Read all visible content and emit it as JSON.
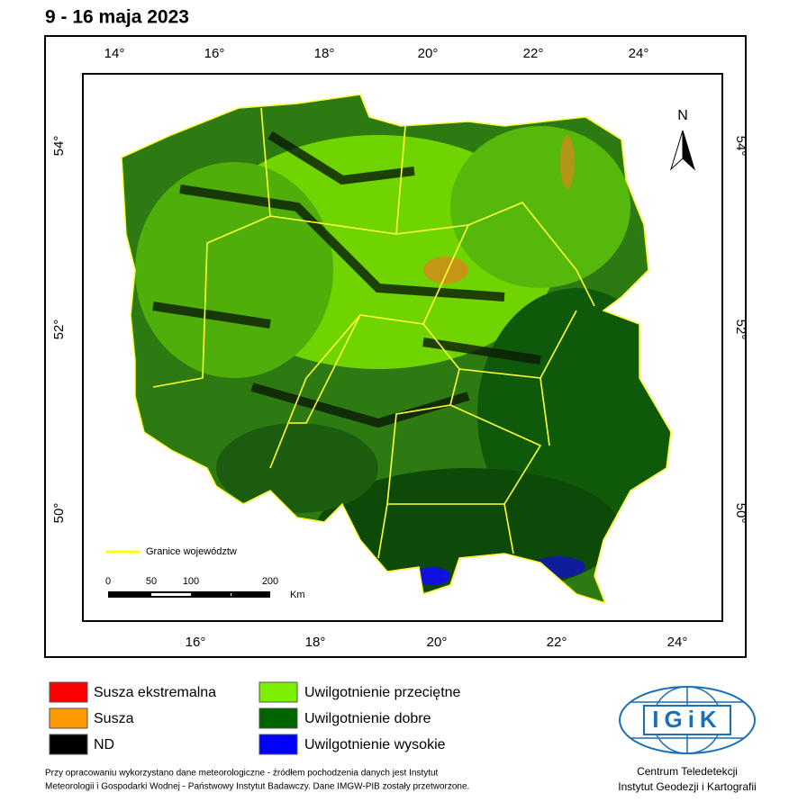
{
  "title": "9 - 16 maja 2023",
  "map": {
    "top_ticks": [
      "14°",
      "16°",
      "18°",
      "20°",
      "22°",
      "24°"
    ],
    "bottom_ticks": [
      "16°",
      "18°",
      "20°",
      "22°",
      "24°"
    ],
    "left_ticks": [
      "54°",
      "52°",
      "50°"
    ],
    "right_ticks": [
      "54°",
      "52°",
      "50°"
    ],
    "north": "N",
    "boundary_legend": "Granice województw",
    "scale_labels": [
      "0",
      "50",
      "100",
      "200"
    ],
    "scale_unit": "Km"
  },
  "legend": [
    {
      "label": "Susza ekstremalna",
      "color": "#ff0000"
    },
    {
      "label": "Susza",
      "color": "#ff9900"
    },
    {
      "label": "ND",
      "color": "#000000"
    },
    {
      "label": "Uwilgotnienie przeciętne",
      "color": "#7cf000"
    },
    {
      "label": "Uwilgotnienie dobre",
      "color": "#006400"
    },
    {
      "label": "Uwilgotnienie wysokie",
      "color": "#0000ff"
    }
  ],
  "footer": {
    "note_lines": [
      "Przy opracowaniu wykorzystano dane meteorologiczne - źródłem pochodzenia danych jest Instytut",
      "Meteorologii i Gospodarki Wodnej - Państwowy Instytut Badawczy. Dane IMGW-PIB zostały przetworzone."
    ],
    "logo": "IGiK",
    "institute_lines": [
      "Centrum Teledetekcji",
      "Instytut Geodezji i Kartografii"
    ]
  }
}
